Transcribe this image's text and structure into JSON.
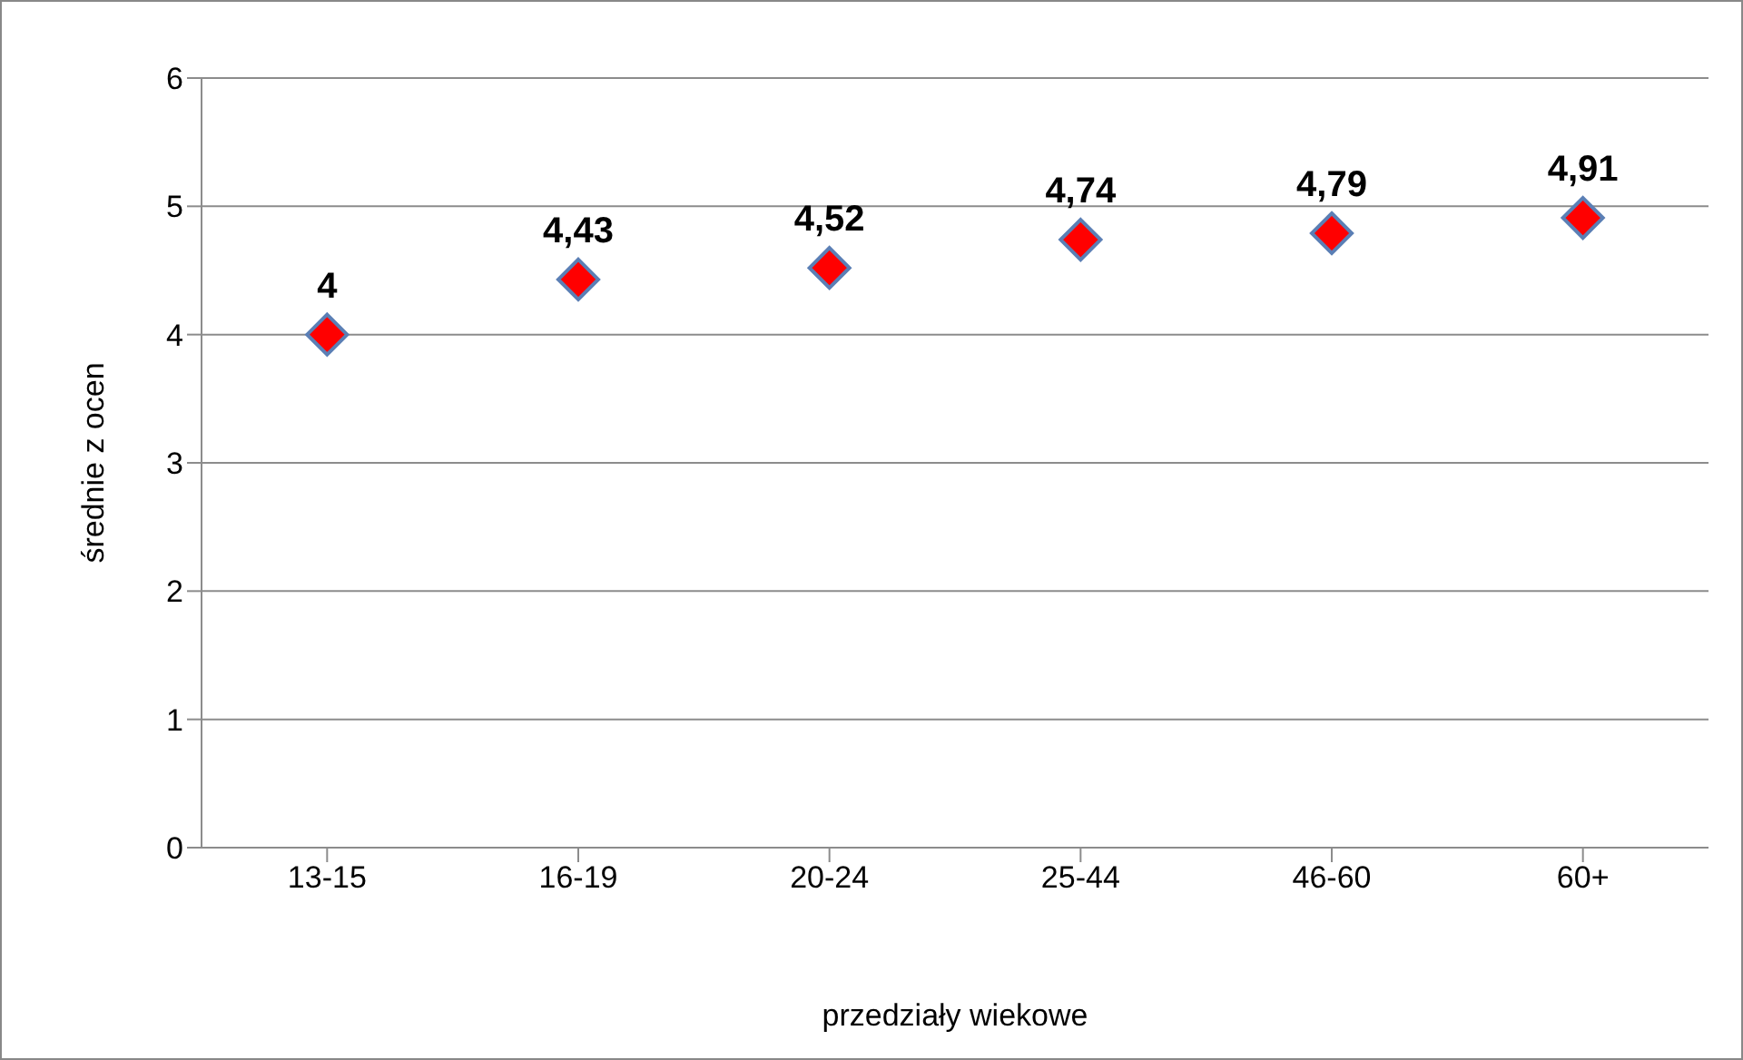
{
  "chart_data": {
    "type": "scatter",
    "xlabel": "przedziały wiekowe",
    "ylabel": "średnie z ocen",
    "categories": [
      "13-15",
      "16-19",
      "20-24",
      "25-44",
      "46-60",
      "60+"
    ],
    "values": [
      4,
      4.43,
      4.52,
      4.74,
      4.79,
      4.91
    ],
    "value_labels": [
      "4",
      "4,43",
      "4,52",
      "4,74",
      "4,79",
      "4,91"
    ],
    "color": "#ff0000",
    "marker": "diamond",
    "ylim": [
      0,
      6
    ],
    "yticks": [
      0,
      1,
      2,
      3,
      4,
      5,
      6
    ],
    "grid": "y"
  }
}
